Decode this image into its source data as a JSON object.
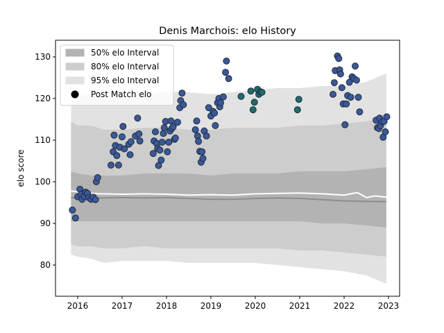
{
  "chart_data": {
    "type": "scatter",
    "title": "Denis Marchois: elo History",
    "xlabel": "",
    "ylabel": "elo score",
    "xlim": [
      2015.5,
      2023.25
    ],
    "ylim": [
      72.5,
      134
    ],
    "x_ticks": [
      2016,
      2017,
      2018,
      2019,
      2020,
      2021,
      2022,
      2023
    ],
    "y_ticks": [
      80,
      90,
      100,
      110,
      120,
      130
    ],
    "legend": {
      "position": "top-left",
      "entries": [
        {
          "label": "50% elo Interval",
          "color": "#b3b3b3"
        },
        {
          "label": "80% elo Interval",
          "color": "#cdcdcd"
        },
        {
          "label": "95% elo Interval",
          "color": "#e2e2e2"
        },
        {
          "label": "Post Match elo",
          "color": "#000000"
        }
      ]
    },
    "colors": {
      "band95": "#e2e2e2",
      "band80": "#cdcdcd",
      "band50": "#b3b3b3",
      "median": "#8c8c8c",
      "mean": "#ffffff",
      "point_edge": "#1f2a3c"
    },
    "bands": {
      "x": [
        2015.85,
        2016.0,
        2016.3,
        2016.6,
        2017.0,
        2017.5,
        2018.0,
        2018.5,
        2019.0,
        2019.5,
        2020.0,
        2020.5,
        2021.0,
        2021.5,
        2022.0,
        2022.5,
        2022.95
      ],
      "p95_upper": [
        120,
        120.5,
        121,
        120.5,
        120.5,
        121,
        121.5,
        121.5,
        121,
        121.5,
        122,
        122.5,
        122.5,
        123,
        123,
        124,
        126
      ],
      "p80_upper": [
        114.5,
        113.5,
        113.5,
        112.5,
        112.5,
        113,
        113,
        112.5,
        112.5,
        113,
        113,
        113,
        113.5,
        113.5,
        114,
        114.5,
        115.5
      ],
      "p50_upper": [
        102.5,
        102,
        101.5,
        101.5,
        101.5,
        102,
        102,
        102,
        101.5,
        102,
        102,
        102,
        102.5,
        102.5,
        102.5,
        103,
        103.5
      ],
      "p50_lower": [
        90.5,
        90.5,
        90.5,
        90.5,
        90.5,
        90.5,
        90.5,
        90.5,
        90.5,
        90.5,
        90.5,
        90.5,
        90.5,
        90,
        90,
        89.5,
        89
      ],
      "p80_lower": [
        85,
        84.5,
        84.5,
        84,
        84,
        84.5,
        84,
        84,
        84,
        84,
        84,
        84,
        83.5,
        83.5,
        83,
        82.5,
        82
      ],
      "p95_lower": [
        82.5,
        82,
        81.5,
        80.5,
        81,
        81,
        81,
        80.5,
        80.5,
        80.5,
        80.5,
        80,
        79.5,
        79,
        78.5,
        77.5,
        75.5
      ]
    },
    "median_line": {
      "x": [
        2015.85,
        2016.2,
        2016.5,
        2017.0,
        2017.5,
        2018.0,
        2018.5,
        2019.0,
        2019.5,
        2020.0,
        2020.5,
        2021.0,
        2021.5,
        2022.0,
        2022.5,
        2022.95
      ],
      "y": [
        96.2,
        96.0,
        96.1,
        96.2,
        96.1,
        96.2,
        96.0,
        95.8,
        95.8,
        96.0,
        96.1,
        96.0,
        95.7,
        95.4,
        95.3,
        95.2
      ]
    },
    "mean_line": {
      "x": [
        2015.85,
        2016.2,
        2016.5,
        2017.0,
        2017.5,
        2018.0,
        2018.5,
        2019.0,
        2019.5,
        2020.0,
        2020.5,
        2021.0,
        2021.5,
        2022.0,
        2022.3,
        2022.5,
        2022.7,
        2022.95
      ],
      "y": [
        97.8,
        97.3,
        97.1,
        97.0,
        97.1,
        97.0,
        96.8,
        96.9,
        96.8,
        97.1,
        97.2,
        97.3,
        97.1,
        96.8,
        97.4,
        96.2,
        96.6,
        96.3
      ]
    },
    "series": [
      {
        "color": "#3b5998",
        "points": [
          [
            2015.88,
            93.2
          ],
          [
            2015.95,
            91.3
          ],
          [
            2016.0,
            96.4
          ],
          [
            2016.05,
            98.2
          ],
          [
            2016.08,
            97.0
          ],
          [
            2016.1,
            95.8
          ],
          [
            2016.15,
            96.5
          ],
          [
            2016.18,
            97.5
          ],
          [
            2016.22,
            97.2
          ],
          [
            2016.25,
            96.2
          ],
          [
            2016.3,
            95.8
          ],
          [
            2016.35,
            96.3
          ],
          [
            2016.4,
            95.7
          ],
          [
            2016.42,
            100.0
          ],
          [
            2016.45,
            101.0
          ],
          [
            2016.75,
            104.0
          ],
          [
            2016.8,
            107.2
          ],
          [
            2016.82,
            111.2
          ],
          [
            2016.85,
            108.7
          ],
          [
            2016.88,
            106.3
          ],
          [
            2016.92,
            104.0
          ],
          [
            2016.95,
            108.3
          ],
          [
            2017.0,
            110.8
          ],
          [
            2017.02,
            113.3
          ],
          [
            2017.05,
            107.9
          ],
          [
            2017.15,
            109.0
          ],
          [
            2017.2,
            109.6
          ],
          [
            2017.18,
            106.5
          ],
          [
            2017.3,
            111.0
          ],
          [
            2017.35,
            115.3
          ],
          [
            2017.38,
            111.5
          ],
          [
            2017.4,
            109.8
          ],
          [
            2017.7,
            106.8
          ],
          [
            2017.72,
            109.8
          ],
          [
            2017.75,
            112.0
          ],
          [
            2017.78,
            109.2
          ],
          [
            2017.8,
            108.0
          ],
          [
            2017.82,
            103.9
          ],
          [
            2017.85,
            107.6
          ],
          [
            2017.88,
            105.2
          ],
          [
            2017.9,
            109.5
          ],
          [
            2017.93,
            111.6
          ],
          [
            2017.95,
            113.0
          ],
          [
            2017.98,
            114.5
          ],
          [
            2018.02,
            107.2
          ],
          [
            2018.05,
            109.5
          ],
          [
            2018.08,
            112.2
          ],
          [
            2018.1,
            114.6
          ],
          [
            2018.12,
            112.8
          ],
          [
            2018.15,
            113.2
          ],
          [
            2018.18,
            110.2
          ],
          [
            2018.2,
            110.5
          ],
          [
            2018.25,
            114.3
          ],
          [
            2018.3,
            117.8
          ],
          [
            2018.32,
            119.5
          ],
          [
            2018.35,
            121.3
          ],
          [
            2018.38,
            118.5
          ],
          [
            2018.65,
            112.5
          ],
          [
            2018.68,
            114.6
          ],
          [
            2018.7,
            111.0
          ],
          [
            2018.72,
            109.7
          ],
          [
            2018.75,
            107.3
          ],
          [
            2018.78,
            104.7
          ],
          [
            2018.8,
            107.2
          ],
          [
            2018.82,
            105.6
          ],
          [
            2018.85,
            112.2
          ],
          [
            2018.9,
            111.0
          ],
          [
            2018.95,
            117.8
          ],
          [
            2019.0,
            115.8
          ],
          [
            2019.05,
            116.9
          ],
          [
            2019.08,
            116.5
          ],
          [
            2019.1,
            113.5
          ],
          [
            2019.15,
            119.0
          ],
          [
            2019.18,
            120.0
          ],
          [
            2019.2,
            118.0
          ],
          [
            2019.22,
            119.0
          ],
          [
            2019.28,
            120.4
          ],
          [
            2019.33,
            126.3
          ],
          [
            2019.35,
            129.0
          ],
          [
            2019.4,
            124.8
          ],
          [
            2021.75,
            121.0
          ],
          [
            2021.78,
            123.8
          ],
          [
            2021.8,
            126.7
          ],
          [
            2021.85,
            130.2
          ],
          [
            2021.88,
            129.6
          ],
          [
            2021.9,
            126.9
          ],
          [
            2021.92,
            125.9
          ],
          [
            2021.95,
            122.6
          ],
          [
            2021.98,
            118.7
          ],
          [
            2022.02,
            113.7
          ],
          [
            2022.05,
            118.7
          ],
          [
            2022.08,
            120.7
          ],
          [
            2022.12,
            123.9
          ],
          [
            2022.15,
            120.3
          ],
          [
            2022.18,
            125.2
          ],
          [
            2022.22,
            124.8
          ],
          [
            2022.25,
            127.8
          ],
          [
            2022.28,
            124.4
          ],
          [
            2022.32,
            120.3
          ],
          [
            2022.35,
            116.8
          ],
          [
            2022.72,
            114.8
          ],
          [
            2022.75,
            113.0
          ],
          [
            2022.78,
            112.8
          ],
          [
            2022.8,
            115.3
          ],
          [
            2022.82,
            113.5
          ],
          [
            2022.85,
            114.4
          ],
          [
            2022.88,
            110.7
          ],
          [
            2022.9,
            114.5
          ],
          [
            2022.93,
            112.0
          ],
          [
            2022.96,
            115.6
          ]
        ]
      },
      {
        "color": "#1e6b6b",
        "points": [
          [
            2019.68,
            120.5
          ],
          [
            2019.9,
            121.8
          ],
          [
            2019.95,
            117.3
          ],
          [
            2019.98,
            119.1
          ],
          [
            2020.05,
            122.2
          ],
          [
            2020.08,
            121.0
          ],
          [
            2020.12,
            121.6
          ],
          [
            2020.15,
            121.5
          ],
          [
            2020.95,
            117.3
          ],
          [
            2020.98,
            119.8
          ]
        ]
      }
    ]
  }
}
